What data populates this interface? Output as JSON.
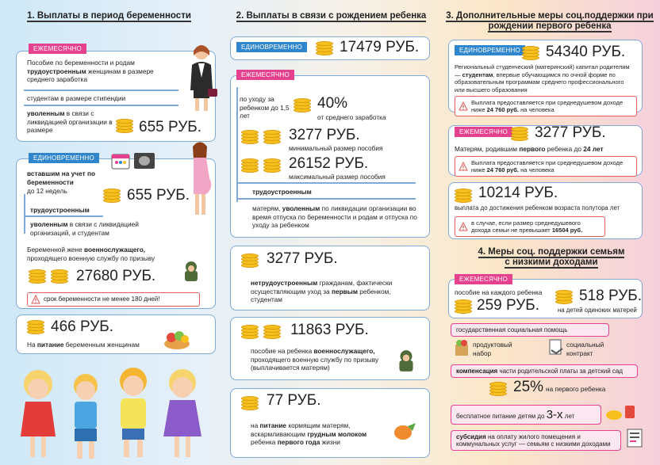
{
  "col1": {
    "title": "1. Выплаты в период беременности",
    "monthly_tag": "ЕЖЕМЕСЯЧНО",
    "m1a": "Пособие по беременности и родам",
    "m1b": "трудоустроенным",
    "m1c": " женщинам в размере среднего заработка",
    "m2": "студентам в размере стипендии",
    "m3a": "уволенным",
    "m3b": " в связи с ликвидацией организации в размере",
    "m3_amount": "655 РУБ.",
    "once_tag": "ЕДИНОВРЕМЕННО",
    "o1a": "вставшим на учет по беременности",
    "o1b": "до 12 недель",
    "o1_amount": "655 РУБ.",
    "o2": "трудоустроенным",
    "o3a": "уволенным",
    "o3b": " в связи с ликвидацией организаций, и студентам",
    "o4a": "Беременной жене ",
    "o4b": "военнослужащего,",
    "o4c": "проходящего военную службу по призыву",
    "o4_amount": "27680 РУБ.",
    "o4_warn": "срок беременности не менее 180 дней!",
    "food_amount": "466 РУБ.",
    "food_a": "На ",
    "food_b": "питание",
    "food_c": " беременным женщинам"
  },
  "col2": {
    "title": "2. Выплаты в связи с рождением ребенка",
    "once_tag": "ЕДИНОВРЕМЕННО",
    "once_amount": "17479 РУБ.",
    "monthly_tag": "ЕЖЕМЕСЯЧНО",
    "care1": "по уходу за ребенком до 1,5 лет",
    "care_pct": "40%",
    "care_pct_sub": "от среднего заработка",
    "min_amount": "3277 РУБ.",
    "min_label": "минимальный размер пособия",
    "max_amount": "26152 РУБ.",
    "max_label": "максимальный размер пособия",
    "employed": "трудоустроенным",
    "mothers_a": "матерям, ",
    "mothers_b": "уволенным",
    "mothers_c": " по ликвидации организации во время отпуска по беременности и родам и отпуска по уходу за ребенком",
    "unemp_amount": "3277 РУБ.",
    "unemp_a": "нетрудоустроенным",
    "unemp_b": " гражданам, фактически осуществляющим уход за ",
    "unemp_c": "первым",
    "unemp_d": " ребенком, студентам",
    "mil_amount": "11863 РУБ.",
    "mil_a": "пособие на ребенка ",
    "mil_b": "военнослужащего,",
    "mil_c": " проходящего военную службу по призыву (выплачивается матерям)",
    "food_amount": "77 РУБ.",
    "food_a": "на ",
    "food_b": "питание",
    "food_c": " кормящим матерям, вскармливающим ",
    "food_d": "грудным молоком",
    "food_e": " ребенка ",
    "food_f": "первого года",
    "food_g": " жизни"
  },
  "col3": {
    "title": "3. Дополнительные меры соц.поддержки при рождении первого ребенка",
    "once_tag": "ЕДИНОВРЕМЕННО",
    "cap_amount": "54340 РУБ.",
    "cap_a": "Региональный студенческий (материнский) капитал родителям — ",
    "cap_b": "студентам",
    "cap_c": ", впервые обучающимся по очной форме по образовательным программам среднего профессионального или высшего образования",
    "warn1a": "Выплата предоставляется при среднедушевом доходе ниже ",
    "warn1b": "24 760 руб.",
    "warn1c": " на человека",
    "monthly_tag": "ЕЖЕМЕСЯЧНО",
    "mon_amount": "3277 РУБ.",
    "mon_a": "Матерям, родившим ",
    "mon_b": "первого",
    "mon_c": " ребенка до ",
    "mon_d": "24 лет",
    "warn2a": "Выплата предоставляется при среднедушевом доходе ниже ",
    "warn2b": "24 760 руб.",
    "warn2c": " на человека",
    "y15_amount": "10214 РУБ.",
    "y15_label": "выплата до достижения ребенком возраста полутора лет",
    "warn3a": "в случае, если размер среднедушевого дохода семьи не превышает ",
    "warn3b": "16504 руб."
  },
  "col4": {
    "title": "4. Меры соц. поддержки семьям с низкими доходами",
    "monthly_tag": "ЕЖЕМЕСЯЧНО",
    "each_label": "пособие на каждого ребенка",
    "each_amount": "259 РУБ.",
    "single_amount": "518 РУБ.",
    "single_label": "на детей одиноких матерей",
    "state_help": "государственная социальная помощь",
    "food_set": "продуктовый набор",
    "contract": "социальный контракт",
    "comp_a": "компенсация",
    "comp_b": " части родительской платы за детский сад",
    "comp_pct": "25%",
    "comp_sub": "на первого ребенка",
    "free_a": "бесплатное питание детям до ",
    "free_b": "3-х",
    "free_c": " лет",
    "sub_a": "субсидия",
    "sub_b": " на оплату жилого помещения и коммунальных услуг",
    "sub_c": " — семьям с низкими доходами"
  },
  "colors": {
    "pink": "#e6418e",
    "blue": "#2f86cc",
    "coin": "#f6c01f"
  }
}
